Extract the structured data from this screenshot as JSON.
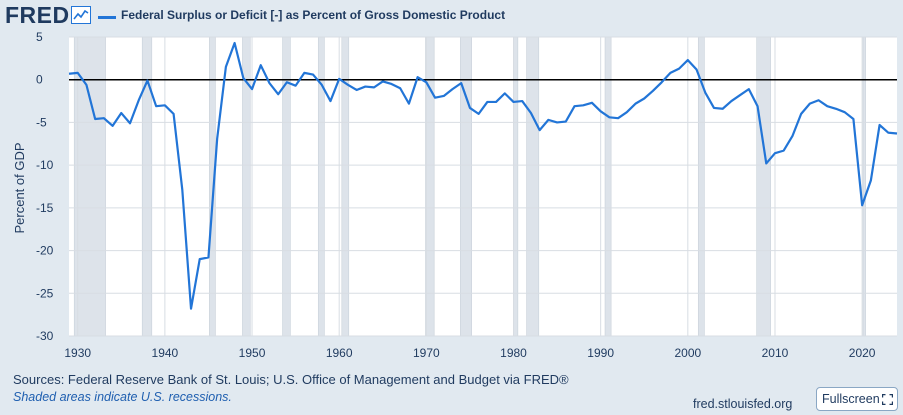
{
  "header": {
    "logo_text": "FRED",
    "logo_icon": "line-chart-icon",
    "legend_label": "Federal Surplus or Deficit [-] as Percent of Gross Domestic Product"
  },
  "footer": {
    "sources": "Sources: Federal Reserve Bank of St. Louis; U.S. Office of Management and Budget via FRED®",
    "note": "Shaded areas indicate U.S. recessions.",
    "url": "fred.stlouisfed.org",
    "fullscreen_label": "Fullscreen",
    "fullscreen_icon": "expand-icon"
  },
  "colors": {
    "line": "#2275d7",
    "recession": "#dde3ea",
    "background": "#e1e9f0",
    "plot": "#ffffff",
    "text": "#1f3a5f"
  },
  "chart_data": {
    "type": "line",
    "title": "Federal Surplus or Deficit [-] as Percent of Gross Domestic Product",
    "xlabel": "",
    "ylabel": "Percent of GDP",
    "xlim": [
      1929,
      2024
    ],
    "ylim": [
      -30,
      5
    ],
    "x_ticks": [
      1930,
      1940,
      1950,
      1960,
      1970,
      1980,
      1990,
      2000,
      2010,
      2020
    ],
    "y_ticks": [
      5,
      0,
      -5,
      -10,
      -15,
      -20,
      -25,
      -30
    ],
    "zero_line": 0,
    "grid": true,
    "recessions": [
      [
        1929.6,
        1933.2
      ],
      [
        1937.4,
        1938.5
      ],
      [
        1945.1,
        1945.8
      ],
      [
        1948.9,
        1949.8
      ],
      [
        1953.5,
        1954.4
      ],
      [
        1957.6,
        1958.3
      ],
      [
        1960.3,
        1961.1
      ],
      [
        1969.9,
        1970.9
      ],
      [
        1973.9,
        1975.2
      ],
      [
        1980.0,
        1980.5
      ],
      [
        1981.5,
        1982.9
      ],
      [
        1990.5,
        1991.2
      ],
      [
        2001.2,
        2001.9
      ],
      [
        2007.9,
        2009.5
      ],
      [
        2020.1,
        2020.4
      ]
    ],
    "series": [
      {
        "name": "Federal Surplus or Deficit [-] as Percent of Gross Domestic Product",
        "x": [
          1929,
          1930,
          1931,
          1932,
          1933,
          1934,
          1935,
          1936,
          1937,
          1938,
          1939,
          1940,
          1941,
          1942,
          1943,
          1944,
          1945,
          1946,
          1947,
          1948,
          1949,
          1950,
          1951,
          1952,
          1953,
          1954,
          1955,
          1956,
          1957,
          1958,
          1959,
          1960,
          1961,
          1962,
          1963,
          1964,
          1965,
          1966,
          1967,
          1968,
          1969,
          1970,
          1971,
          1972,
          1973,
          1974,
          1975,
          1976,
          1977,
          1978,
          1979,
          1980,
          1981,
          1982,
          1983,
          1984,
          1985,
          1986,
          1987,
          1988,
          1989,
          1990,
          1991,
          1992,
          1993,
          1994,
          1995,
          1996,
          1997,
          1998,
          1999,
          2000,
          2001,
          2002,
          2003,
          2004,
          2005,
          2006,
          2007,
          2008,
          2009,
          2010,
          2011,
          2012,
          2013,
          2014,
          2015,
          2016,
          2017,
          2018,
          2019,
          2020,
          2021,
          2022,
          2023,
          2024
        ],
        "y": [
          0.7,
          0.8,
          -0.6,
          -4.6,
          -4.5,
          -5.4,
          -3.9,
          -5.1,
          -2.4,
          -0.1,
          -3.1,
          -3.0,
          -4.0,
          -12.9,
          -26.8,
          -21.0,
          -20.8,
          -6.9,
          1.5,
          4.3,
          0.2,
          -1.1,
          1.7,
          -0.4,
          -1.7,
          -0.3,
          -0.7,
          0.8,
          0.6,
          -0.6,
          -2.5,
          0.1,
          -0.6,
          -1.2,
          -0.8,
          -0.9,
          -0.2,
          -0.5,
          -1.0,
          -2.8,
          0.3,
          -0.3,
          -2.1,
          -1.9,
          -1.1,
          -0.4,
          -3.3,
          -4.0,
          -2.6,
          -2.6,
          -1.6,
          -2.6,
          -2.5,
          -3.9,
          -5.9,
          -4.7,
          -5.0,
          -4.9,
          -3.1,
          -3.0,
          -2.7,
          -3.7,
          -4.4,
          -4.5,
          -3.8,
          -2.8,
          -2.2,
          -1.3,
          -0.3,
          0.8,
          1.3,
          2.3,
          1.2,
          -1.5,
          -3.3,
          -3.4,
          -2.5,
          -1.8,
          -1.1,
          -3.1,
          -9.8,
          -8.6,
          -8.3,
          -6.6,
          -4.0,
          -2.8,
          -2.4,
          -3.1,
          -3.4,
          -3.8,
          -4.6,
          -14.7,
          -11.8,
          -5.3,
          -6.2,
          -6.3
        ]
      }
    ]
  }
}
